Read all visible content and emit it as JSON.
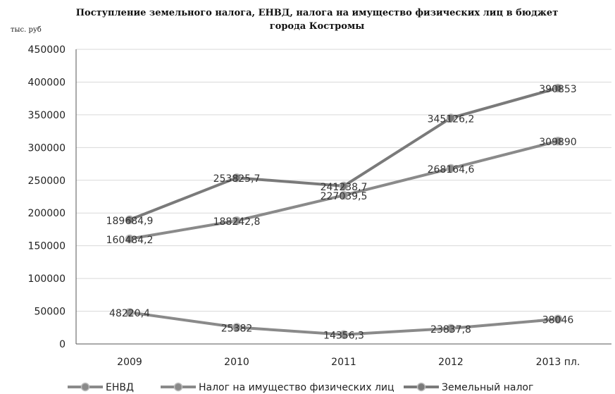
{
  "chart_data": {
    "type": "line",
    "title_line1": "Поступление земельного налога, ЕНВД, налога на имущество физических лиц в бюджет",
    "title_line2": "города Костромы",
    "unit_label": "тыс. руб",
    "categories": [
      "2009",
      "2010",
      "2011",
      "2012",
      "2013 пл."
    ],
    "ylim": [
      0,
      450000
    ],
    "yticks": [
      0,
      50000,
      100000,
      150000,
      200000,
      250000,
      300000,
      350000,
      400000,
      450000
    ],
    "grid": true,
    "legend_position": "bottom",
    "series": [
      {
        "name": "ЕНВД",
        "values": [
          48220.4,
          25382,
          14356.3,
          23837.8,
          38046
        ],
        "labels": [
          "48220,4",
          "25382",
          "14356,3",
          "23837,8",
          "38046"
        ],
        "color": "#8a8a8a"
      },
      {
        "name": "Налог на имущество физических лиц",
        "values": [
          160484.2,
          188242.8,
          227039.5,
          268164.6,
          309890
        ],
        "labels": [
          "160484,2",
          "188242,8",
          "227039,5",
          "268164,6",
          "309890"
        ],
        "color": "#8a8a8a"
      },
      {
        "name": "Земельный налог",
        "values": [
          189684.9,
          253825.7,
          241238.7,
          345126.2,
          390853
        ],
        "labels": [
          "189684,9",
          "253825,7",
          "241238,7",
          "345126,2",
          "390853"
        ],
        "color": "#7a7a7a"
      }
    ]
  }
}
